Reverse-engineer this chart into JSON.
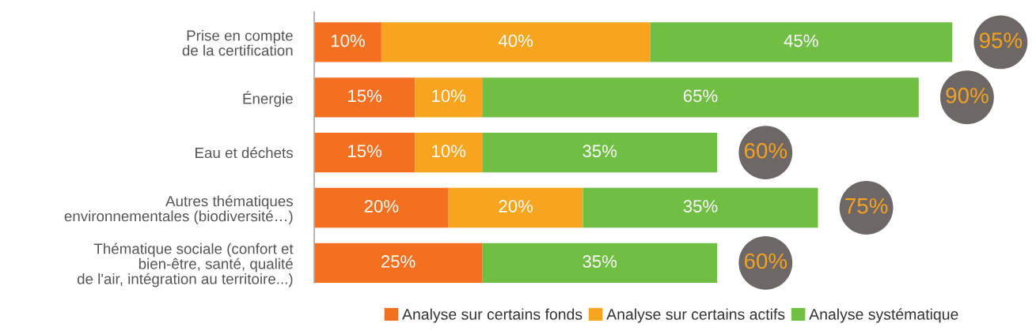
{
  "chart_data": {
    "type": "bar",
    "orientation": "horizontal",
    "stacked": true,
    "categories": [
      "Prise en compte\nde la certification",
      "Énergie",
      "Eau et déchets",
      "Autres thématiques\nenvironnementales (biodiversité…)",
      "Thématique sociale (confort et\nbien-être, santé, qualité\nde l'air, intégration au territoire...)"
    ],
    "series": [
      {
        "name": "Analyse sur certains fonds",
        "color": "#f37021",
        "values": [
          10,
          15,
          15,
          20,
          25
        ],
        "value_labels": [
          "10%",
          "15%",
          "15%",
          "20%",
          "25%"
        ]
      },
      {
        "name": "Analyse sur certains actifs",
        "color": "#f7a51e",
        "values": [
          40,
          10,
          10,
          20,
          null
        ],
        "value_labels": [
          "40%",
          "10%",
          "10%",
          "20%",
          null
        ]
      },
      {
        "name": "Analyse systématique",
        "color": "#70bf44",
        "values": [
          45,
          65,
          35,
          35,
          35
        ],
        "value_labels": [
          "45%",
          "65%",
          "35%",
          "35%",
          "35%"
        ]
      }
    ],
    "totals": [
      "95%",
      "90%",
      "60%",
      "75%",
      "60%"
    ],
    "tick_labels": "y",
    "legend": "bottom",
    "grid": false
  }
}
